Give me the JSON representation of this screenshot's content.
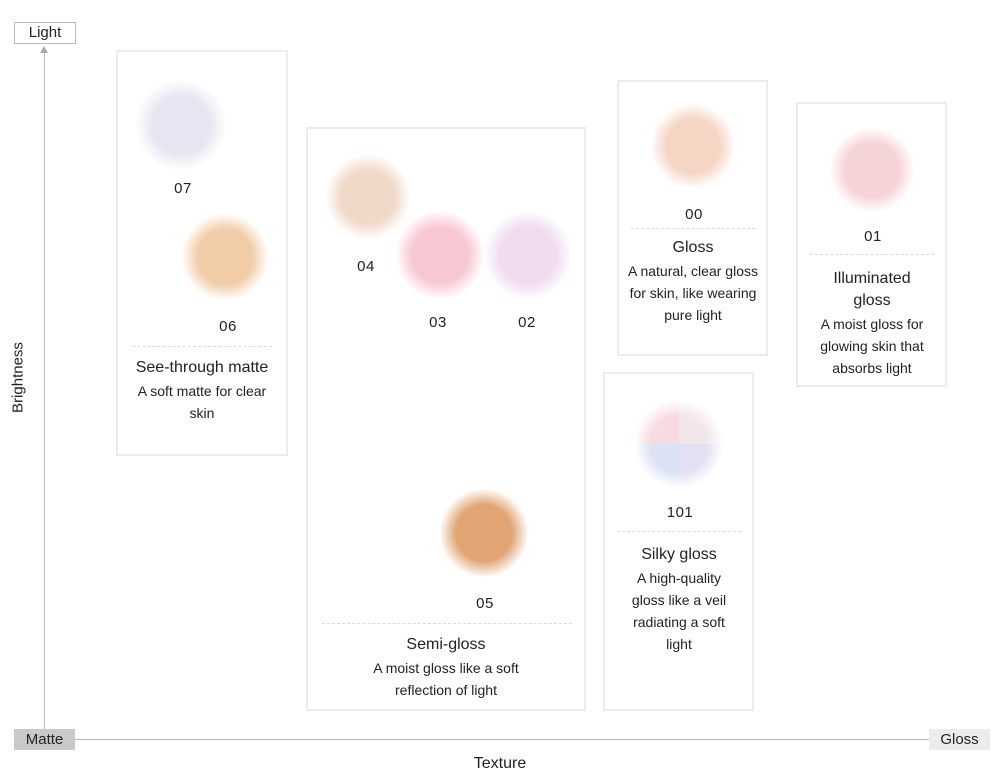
{
  "axes": {
    "y_top": "Light",
    "y_label": "Brightness",
    "x_left": "Matte",
    "x_right": "Gloss",
    "x_label": "Texture"
  },
  "groups": [
    {
      "title": "See-through matte",
      "description": "A soft matte for clear skin",
      "shades": [
        {
          "code": "07",
          "color": "#e6e6f2"
        },
        {
          "code": "06",
          "color": "#f0cda6"
        }
      ]
    },
    {
      "title": "Semi-gloss",
      "description": "A moist gloss like a soft reflection of light",
      "shades": [
        {
          "code": "04",
          "color": "#f0d9c8"
        },
        {
          "code": "03",
          "color": "#f8c8d2"
        },
        {
          "code": "02",
          "color": "#efdcef"
        },
        {
          "code": "05",
          "color": "#e1a574"
        }
      ]
    },
    {
      "title": "Gloss",
      "description": "A natural, clear gloss for skin, like wearing pure light",
      "shades": [
        {
          "code": "00",
          "color": "#f5d6c4"
        }
      ]
    },
    {
      "title": "Illuminated gloss",
      "description": "A moist gloss for glowing skin that absorbs light",
      "shades": [
        {
          "code": "01",
          "color": "#f6d3d6"
        }
      ]
    },
    {
      "title": "Silky gloss",
      "description": "A high-quality gloss like a veil radiating a soft light",
      "shades": [
        {
          "code": "101",
          "colors": [
            "#f6dbe0",
            "#dbe2f5",
            "#e4dff2",
            "#f3e6ea"
          ]
        }
      ]
    }
  ]
}
